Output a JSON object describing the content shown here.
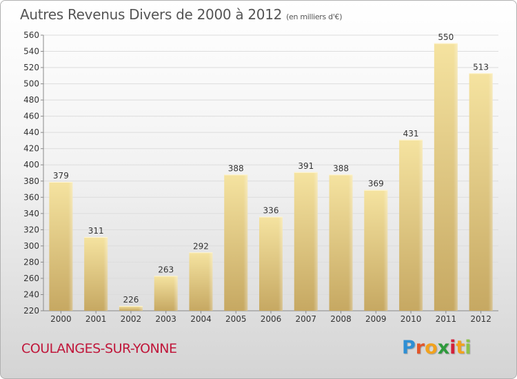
{
  "title": "Autres Revenus Divers de 2000 à 2012",
  "unit": "(en milliers d'€)",
  "commune": "COULANGES-SUR-YONNE",
  "logo": {
    "letters": [
      "P",
      "r",
      "o",
      "x",
      "i",
      "t",
      "i"
    ],
    "colors": [
      "#2e8fd4",
      "#e2562a",
      "#f2a21e",
      "#2e9a3c",
      "#d4203a",
      "#f2a21e",
      "#8bc34a"
    ]
  },
  "colors": {
    "bar_light": "#f5e3a0",
    "bar_dark": "#c6a862",
    "commune_text": "#c0163a"
  },
  "chart_data": {
    "type": "bar",
    "categories": [
      "2000",
      "2001",
      "2002",
      "2003",
      "2004",
      "2005",
      "2006",
      "2007",
      "2008",
      "2009",
      "2010",
      "2011",
      "2012"
    ],
    "values": [
      379,
      311,
      226,
      263,
      292,
      388,
      336,
      391,
      388,
      369,
      431,
      550,
      513
    ],
    "title": "Autres Revenus Divers de 2000 à 2012",
    "xlabel": "",
    "ylabel": "",
    "ylim": [
      220,
      560
    ],
    "yticks": [
      220,
      240,
      260,
      280,
      300,
      320,
      340,
      360,
      380,
      400,
      420,
      440,
      460,
      480,
      500,
      520,
      540,
      560
    ],
    "grid": true,
    "legend": "none"
  }
}
